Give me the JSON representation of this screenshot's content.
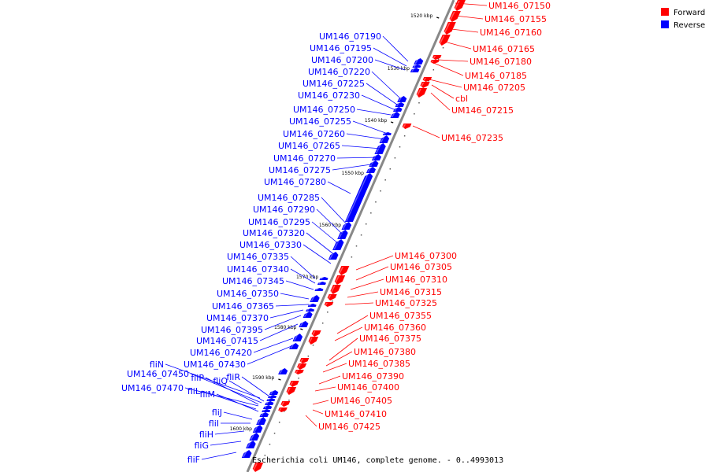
{
  "caption": "Escherichia coli UM146, complete genome. - 0..4993013",
  "legend": [
    {
      "label": "Forward",
      "color": "#ff0000"
    },
    {
      "label": "Reverse",
      "color": "#0000ff"
    }
  ],
  "colors": {
    "forward": "#ff0000",
    "reverse": "#0000ff",
    "backbone": "#888888"
  },
  "ticks": [
    "1520 kbp",
    "1530 kbp",
    "1540 kbp",
    "1550 kbp",
    "1560 kbp",
    "1570 kbp",
    "1580 kbp",
    "1590 kbp",
    "1600 kbp"
  ],
  "forward_genes": [
    "UM146_07150",
    "UM146_07155",
    "UM146_07160",
    "UM146_07165",
    "UM146_07180",
    "UM146_07185",
    "UM146_07205",
    "cbl",
    "UM146_07215",
    "UM146_07235",
    "UM146_07300",
    "UM146_07305",
    "UM146_07310",
    "UM146_07315",
    "UM146_07325",
    "UM146_07355",
    "UM146_07360",
    "UM146_07375",
    "UM146_07380",
    "UM146_07385",
    "UM146_07390",
    "UM146_07400",
    "UM146_07405",
    "UM146_07410",
    "UM146_07425"
  ],
  "reverse_genes": [
    "UM146_07190",
    "UM146_07195",
    "UM146_07200",
    "UM146_07220",
    "UM146_07225",
    "UM146_07230",
    "UM146_07250",
    "UM146_07255",
    "UM146_07260",
    "UM146_07265",
    "UM146_07270",
    "UM146_07275",
    "UM146_07280",
    "UM146_07285",
    "UM146_07290",
    "UM146_07295",
    "UM146_07320",
    "UM146_07330",
    "UM146_07335",
    "UM146_07340",
    "UM146_07345",
    "UM146_07350",
    "UM146_07365",
    "UM146_07370",
    "UM146_07395",
    "UM146_07415",
    "UM146_07420",
    "UM146_07430",
    "fliN",
    "UM146_07450",
    "fliP",
    "fliQ",
    "fliR",
    "UM146_07470",
    "fliL",
    "fliM",
    "fliJ",
    "fliI",
    "fliH",
    "fliG",
    "fliF"
  ]
}
